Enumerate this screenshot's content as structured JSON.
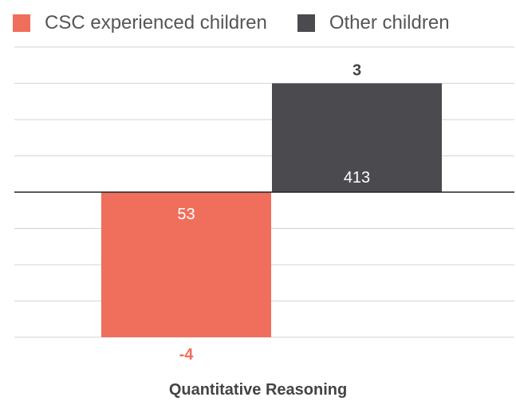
{
  "chart_data": {
    "type": "bar",
    "xlabel": "Quantitative Reasoning",
    "ylabel": "",
    "title": "",
    "categories": [
      "Quantitative Reasoning"
    ],
    "ylim": [
      -4,
      3
    ],
    "grid": true,
    "legend_position": "top-left",
    "series": [
      {
        "name": "CSC experienced children",
        "value": -4,
        "value_label": "-4",
        "n_label": "53",
        "color": "#ef6f5c"
      },
      {
        "name": "Other children",
        "value": 3,
        "value_label": "3",
        "n_label": "413",
        "color": "#4a4a4f"
      }
    ]
  }
}
